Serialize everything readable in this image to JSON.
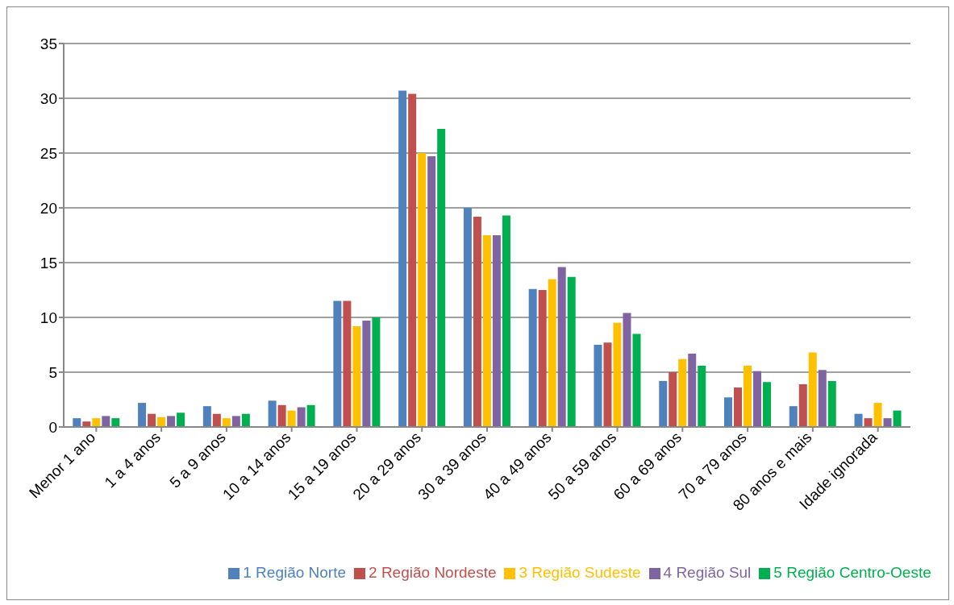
{
  "chart_data": {
    "type": "bar",
    "categories": [
      "Menor 1 ano",
      "1 a 4 anos",
      "5 a 9 anos",
      "10 a 14 anos",
      "15 a 19 anos",
      "20 a 29 anos",
      "30 a 39 anos",
      "40 a 49 anos",
      "50 a 59 anos",
      "60 a 69 anos",
      "70 a 79 anos",
      "80 anos e mais",
      "Idade ignorada"
    ],
    "series": [
      {
        "name": "1 Região Norte",
        "color": "#4f81bd",
        "values": [
          0.8,
          2.2,
          1.9,
          2.4,
          11.5,
          30.7,
          20.0,
          12.6,
          7.5,
          4.2,
          2.7,
          1.9,
          1.2
        ]
      },
      {
        "name": "2 Região Nordeste",
        "color": "#c0504d",
        "values": [
          0.5,
          1.2,
          1.2,
          2.0,
          11.5,
          30.4,
          19.2,
          12.5,
          7.7,
          5.0,
          3.6,
          3.9,
          0.8
        ]
      },
      {
        "name": "3 Região Sudeste",
        "color": "#ffc000",
        "values": [
          0.8,
          0.9,
          0.8,
          1.5,
          9.2,
          25.0,
          17.5,
          13.5,
          9.5,
          6.2,
          5.6,
          6.8,
          2.2
        ]
      },
      {
        "name": "4 Região Sul",
        "color": "#8064a2",
        "values": [
          1.0,
          1.0,
          1.0,
          1.8,
          9.7,
          24.7,
          17.5,
          14.6,
          10.4,
          6.7,
          5.1,
          5.2,
          0.8
        ]
      },
      {
        "name": "5 Região Centro-Oeste",
        "color": "#00b050",
        "values": [
          0.8,
          1.3,
          1.2,
          2.0,
          10.0,
          27.2,
          19.3,
          13.7,
          8.5,
          5.6,
          4.1,
          4.2,
          1.5
        ]
      }
    ],
    "ylim": [
      0,
      35
    ],
    "yticks": [
      0,
      5,
      10,
      15,
      20,
      25,
      30,
      35
    ],
    "grid": "y",
    "legend": "bottom"
  }
}
